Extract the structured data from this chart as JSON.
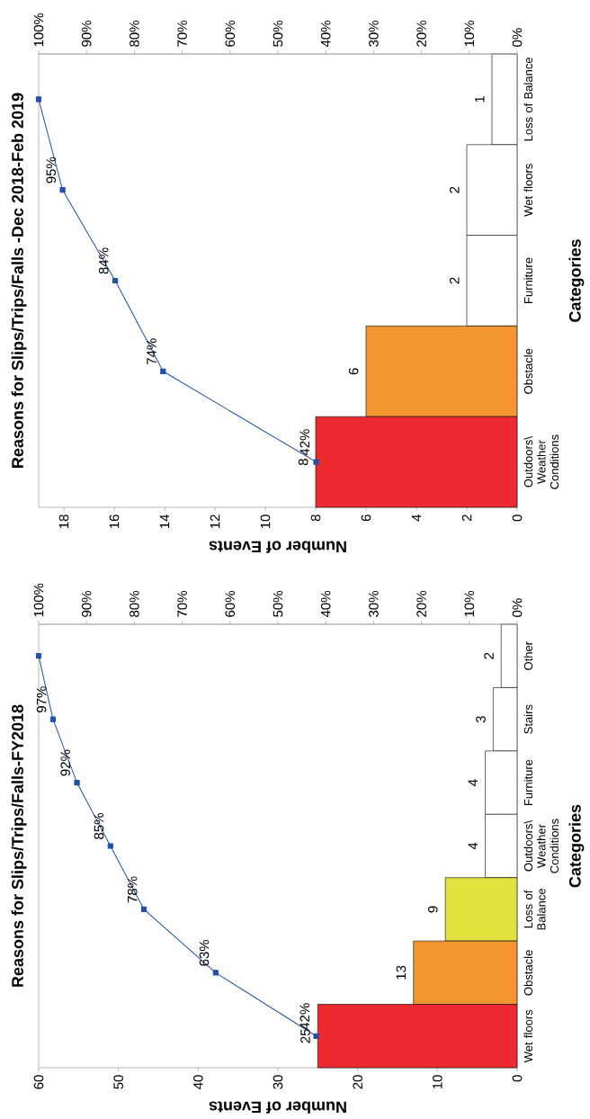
{
  "chart_data": [
    {
      "type": "bar",
      "orientation": "horizontal",
      "title": "Reasons for Slips/Trips/Falls -Dec 2018-Feb 2019",
      "xlabel": "Number of Events",
      "ylabel": "Categories",
      "categories": [
        "Loss of Balance",
        "Wet floors",
        "Furniture",
        "Obstacle",
        "Outdoors\\ Weather Conditions"
      ],
      "series": [
        {
          "colors": [
            "#ffffff",
            "#ffffff",
            "#ffffff",
            "#f3962f",
            "#ec2a2f"
          ],
          "values": [
            1,
            2,
            2,
            6,
            8
          ],
          "value_labels": [
            "1",
            "2",
            "2",
            "6",
            "8"
          ]
        },
        {
          "type": "line",
          "axis": "x2",
          "color": "#2150a6",
          "marker": "square",
          "values": [
            100,
            95,
            84,
            74,
            42
          ],
          "value_labels": [
            null,
            "95%",
            "84%",
            "74%",
            "42%"
          ]
        }
      ],
      "xlim": [
        19,
        0
      ],
      "xticks": [
        0,
        2,
        4,
        6,
        8,
        10,
        12,
        14,
        16,
        18
      ],
      "x2lim": [
        100,
        0
      ],
      "x2ticks": [
        {
          "value": 0,
          "label": "0%"
        },
        {
          "value": 10,
          "label": "10%"
        },
        {
          "value": 20,
          "label": "20%"
        },
        {
          "value": 30,
          "label": "30%"
        },
        {
          "value": 40,
          "label": "40%"
        },
        {
          "value": 50,
          "label": "50%"
        },
        {
          "value": 60,
          "label": "60%"
        },
        {
          "value": 70,
          "label": "70%"
        },
        {
          "value": 80,
          "label": "80%"
        },
        {
          "value": 90,
          "label": "90%"
        },
        {
          "value": 100,
          "label": "100%"
        }
      ]
    },
    {
      "type": "bar",
      "orientation": "horizontal",
      "title": "Reasons for Slips/Trips/Falls-FY2018",
      "xlabel": "Number of Events",
      "ylabel": "Categories",
      "categories": [
        "Other",
        "Stairs",
        "Furniture",
        "Outdoors\\ Weather Conditions",
        "Loss of Balance",
        "Obstacle",
        "Wet floors"
      ],
      "series": [
        {
          "colors": [
            "#ffffff",
            "#ffffff",
            "#ffffff",
            "#ffffff",
            "#e2e23e",
            "#f3962f",
            "#ec2a2f"
          ],
          "values": [
            2,
            3,
            4,
            4,
            9,
            13,
            25
          ],
          "value_labels": [
            "2",
            "3",
            "4",
            "4",
            "9",
            "13",
            "25"
          ]
        },
        {
          "type": "line",
          "axis": "x2",
          "color": "#2150a6",
          "marker": "square",
          "values": [
            100,
            97,
            92,
            85,
            78,
            63,
            42
          ],
          "value_labels": [
            null,
            "97%",
            "92%",
            "85%",
            "78%",
            "63%",
            "42%"
          ]
        }
      ],
      "xlim": [
        60,
        0
      ],
      "xticks": [
        0,
        10,
        20,
        30,
        40,
        50,
        60
      ],
      "x2lim": [
        100,
        0
      ],
      "x2ticks": [
        {
          "value": 0,
          "label": "0%"
        },
        {
          "value": 10,
          "label": "10%"
        },
        {
          "value": 20,
          "label": "20%"
        },
        {
          "value": 30,
          "label": "30%"
        },
        {
          "value": 40,
          "label": "40%"
        },
        {
          "value": 50,
          "label": "50%"
        },
        {
          "value": 60,
          "label": "60%"
        },
        {
          "value": 70,
          "label": "70%"
        },
        {
          "value": 80,
          "label": "80%"
        },
        {
          "value": 90,
          "label": "90%"
        },
        {
          "value": 100,
          "label": "100%"
        }
      ]
    }
  ]
}
